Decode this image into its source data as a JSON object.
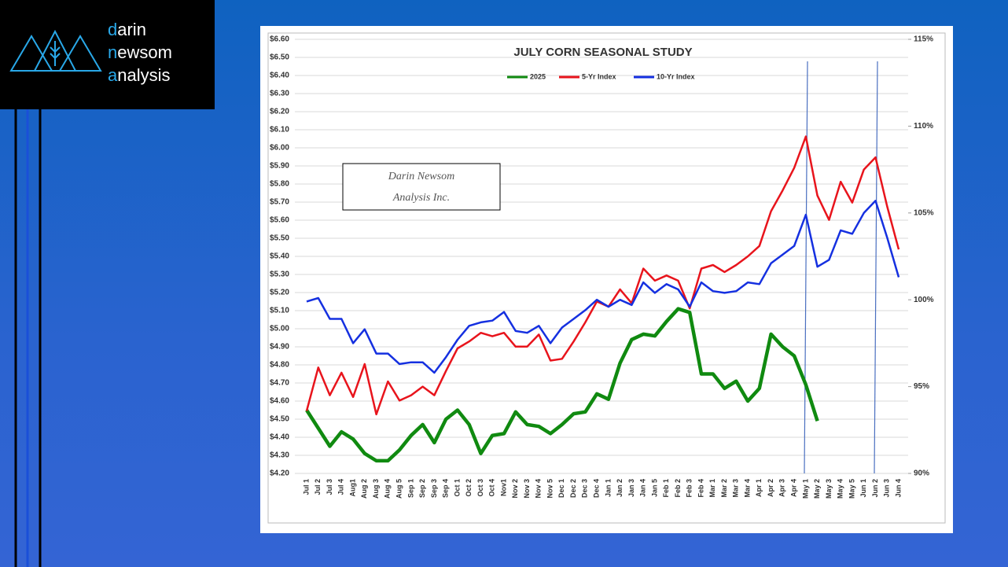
{
  "logo": {
    "lines": [
      "darin",
      "newsom",
      "analysis"
    ]
  },
  "chart_data": {
    "type": "line",
    "title": "JULY CORN SEASONAL STUDY",
    "annotation": [
      "Darin Newsom",
      "Analysis Inc."
    ],
    "categories": [
      "Jul 1",
      "Jul 2",
      "Jul 3",
      "Jul 4",
      "Aug1",
      "Aug 2",
      "Aug 3",
      "Aug 4",
      "Aug 5",
      "Sep 1",
      "Sep 2",
      "Sep 3",
      "Sep 4",
      "Oct 1",
      "Oct 2",
      "Oct 3",
      "Oct 4",
      "Nov1",
      "Nov 2",
      "Nov 3",
      "Nov 4",
      "Nov 5",
      "Dec 1",
      "Dec 2",
      "Dec 3",
      "Dec 4",
      "Jan 1",
      "Jan 2",
      "Jan 3",
      "Jan 4",
      "Jan 5",
      "Feb 1",
      "Feb 2",
      "Feb 3",
      "Feb 4",
      "Mar 1",
      "Mar 2",
      "Mar 3",
      "Mar 4",
      "Apr 1",
      "Apr 2",
      "Apr 3",
      "Apr 4",
      "May 1",
      "May 2",
      "May 3",
      "May 4",
      "May 5",
      "Jun 1",
      "Jun 2",
      "Jun 3",
      "Jun 4"
    ],
    "series": [
      {
        "name": "2025",
        "color": "#108a10",
        "axis": "y",
        "values": [
          4.55,
          4.45,
          4.35,
          4.43,
          4.39,
          4.31,
          4.27,
          4.27,
          4.33,
          4.41,
          4.47,
          4.37,
          4.5,
          4.55,
          4.47,
          4.31,
          4.41,
          4.42,
          4.54,
          4.47,
          4.46,
          4.42,
          4.47,
          4.53,
          4.54,
          4.64,
          4.61,
          4.81,
          4.94,
          4.97,
          4.96,
          5.04,
          5.11,
          5.09,
          4.75,
          4.75,
          4.67,
          4.71,
          4.6,
          4.67,
          4.97,
          4.9,
          4.85,
          4.69,
          4.49,
          null,
          null,
          null,
          null,
          null,
          null,
          null
        ]
      },
      {
        "name": "5-Yr Index",
        "color": "#e8141c",
        "axis": "y2",
        "values": [
          93.6,
          96.1,
          94.5,
          95.8,
          94.4,
          96.3,
          93.4,
          95.3,
          94.2,
          94.5,
          95.0,
          94.5,
          95.9,
          97.2,
          97.6,
          98.1,
          97.9,
          98.1,
          97.3,
          97.3,
          98.0,
          96.5,
          96.6,
          97.6,
          98.7,
          99.9,
          99.6,
          100.6,
          99.8,
          101.8,
          101.1,
          101.4,
          101.1,
          99.5,
          101.8,
          102.0,
          101.6,
          102.0,
          102.5,
          103.1,
          105.1,
          106.3,
          107.6,
          109.4,
          106.0,
          104.6,
          106.8,
          105.6,
          107.5,
          108.2,
          105.4,
          102.9
        ]
      },
      {
        "name": "10-Yr Index",
        "color": "#1530e0",
        "axis": "y2",
        "values": [
          99.9,
          100.1,
          98.9,
          98.9,
          97.5,
          98.3,
          96.9,
          96.9,
          96.3,
          96.4,
          96.4,
          95.8,
          96.7,
          97.7,
          98.5,
          98.7,
          98.8,
          99.3,
          98.2,
          98.1,
          98.5,
          97.5,
          98.4,
          98.9,
          99.4,
          100.0,
          99.6,
          100.0,
          99.7,
          101.0,
          100.4,
          100.9,
          100.6,
          99.6,
          101.0,
          100.5,
          100.4,
          100.5,
          101.0,
          100.9,
          102.1,
          102.6,
          103.1,
          104.9,
          101.9,
          102.3,
          104.0,
          103.8,
          105.0,
          105.7,
          103.6,
          101.3
        ]
      }
    ],
    "ylim": [
      4.2,
      6.6
    ],
    "yticks": [
      {
        "value": 4.2,
        "label": "$4.20"
      },
      {
        "value": 4.3,
        "label": "$4.30"
      },
      {
        "value": 4.4,
        "label": "$4.40"
      },
      {
        "value": 4.5,
        "label": "$4.50"
      },
      {
        "value": 4.6,
        "label": "$4.60"
      },
      {
        "value": 4.7,
        "label": "$4.70"
      },
      {
        "value": 4.8,
        "label": "$4.80"
      },
      {
        "value": 4.9,
        "label": "$4.90"
      },
      {
        "value": 5.0,
        "label": "$5.00"
      },
      {
        "value": 5.1,
        "label": "$5.10"
      },
      {
        "value": 5.2,
        "label": "$5.20"
      },
      {
        "value": 5.3,
        "label": "$5.30"
      },
      {
        "value": 5.4,
        "label": "$5.40"
      },
      {
        "value": 5.5,
        "label": "$5.50"
      },
      {
        "value": 5.6,
        "label": "$5.60"
      },
      {
        "value": 5.7,
        "label": "$5.70"
      },
      {
        "value": 5.8,
        "label": "$5.80"
      },
      {
        "value": 5.9,
        "label": "$5.90"
      },
      {
        "value": 6.0,
        "label": "$6.00"
      },
      {
        "value": 6.1,
        "label": "$6.10"
      },
      {
        "value": 6.2,
        "label": "$6.20"
      },
      {
        "value": 6.3,
        "label": "$6.30"
      },
      {
        "value": 6.4,
        "label": "$6.40"
      },
      {
        "value": 6.5,
        "label": "$6.50"
      },
      {
        "value": 6.6,
        "label": "$6.60"
      }
    ],
    "y2lim": [
      90,
      115
    ],
    "y2ticks": [
      {
        "value": 90,
        "label": "90%"
      },
      {
        "value": 95,
        "label": "95%"
      },
      {
        "value": 100,
        "label": "100%"
      },
      {
        "value": 105,
        "label": "105%"
      },
      {
        "value": 110,
        "label": "110%"
      },
      {
        "value": 115,
        "label": "115%"
      }
    ],
    "grid": true
  }
}
